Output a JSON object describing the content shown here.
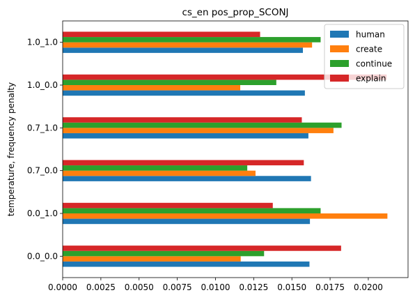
{
  "chart_data": {
    "type": "bar",
    "orientation": "horizontal",
    "title": "cs_en pos_prop_SCONJ",
    "xlabel": "",
    "ylabel": "temperature, frequency penalty",
    "categories": [
      "0.0_0.0",
      "0.0_1.0",
      "0.7_0.0",
      "0.7_1.0",
      "1.0_0.0",
      "1.0_1.0"
    ],
    "xlim": [
      0,
      0.0226
    ],
    "xticks": [
      "0.0000",
      "0.0025",
      "0.0050",
      "0.0075",
      "0.0100",
      "0.0125",
      "0.0150",
      "0.0175",
      "0.0200"
    ],
    "grid": false,
    "legend_position": "top-right",
    "series": [
      {
        "name": "human",
        "color": "#1f77b4",
        "values": [
          0.01615,
          0.01618,
          0.01625,
          0.01608,
          0.01585,
          0.01572
        ]
      },
      {
        "name": "create",
        "color": "#ff7f0e",
        "values": [
          0.01165,
          0.02125,
          0.01262,
          0.01772,
          0.01162,
          0.01632
        ]
      },
      {
        "name": "continue",
        "color": "#2ca02c",
        "values": [
          0.01318,
          0.01688,
          0.01208,
          0.01825,
          0.01398,
          0.01688
        ]
      },
      {
        "name": "explain",
        "color": "#d62728",
        "values": [
          0.01822,
          0.01375,
          0.01578,
          0.01565,
          0.0212,
          0.01292
        ]
      }
    ]
  }
}
